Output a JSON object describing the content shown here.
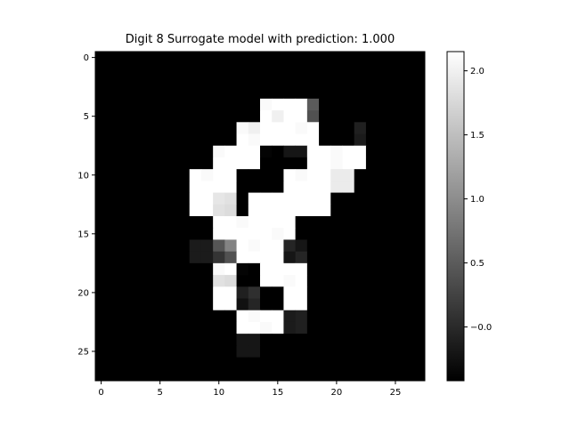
{
  "chart_data": {
    "type": "heatmap",
    "title": "Digit 8 Surrogate model with prediction: 1.000",
    "xlabel": "",
    "ylabel": "",
    "rows": 28,
    "cols": 28,
    "background_value": -0.42,
    "xticks": [
      0,
      5,
      10,
      15,
      20,
      25
    ],
    "yticks": [
      0,
      5,
      10,
      15,
      20,
      25
    ],
    "xtick_labels": [
      "0",
      "5",
      "10",
      "15",
      "20",
      "25"
    ],
    "ytick_labels": [
      "0",
      "5",
      "10",
      "15",
      "20",
      "25"
    ],
    "colormap": "gray",
    "vmin": -0.42,
    "vmax": 2.15,
    "colorbar_ticks": [
      -0.0,
      0.5,
      1.0,
      1.5,
      2.0
    ],
    "colorbar_tick_labels": [
      "−0.0",
      "0.5",
      "1.0",
      "1.5",
      "2.0"
    ],
    "nonzero_cells": [
      {
        "r": 4,
        "c": 14,
        "v": 2.1
      },
      {
        "r": 4,
        "c": 15,
        "v": 2.15
      },
      {
        "r": 4,
        "c": 16,
        "v": 2.15
      },
      {
        "r": 4,
        "c": 17,
        "v": 2.15
      },
      {
        "r": 4,
        "c": 18,
        "v": 0.5
      },
      {
        "r": 5,
        "c": 14,
        "v": 2.15
      },
      {
        "r": 5,
        "c": 15,
        "v": 2.0
      },
      {
        "r": 5,
        "c": 16,
        "v": 2.15
      },
      {
        "r": 5,
        "c": 17,
        "v": 2.15
      },
      {
        "r": 5,
        "c": 18,
        "v": 0.4
      },
      {
        "r": 6,
        "c": 12,
        "v": 2.1
      },
      {
        "r": 6,
        "c": 13,
        "v": 2.0
      },
      {
        "r": 6,
        "c": 14,
        "v": 2.15
      },
      {
        "r": 6,
        "c": 15,
        "v": 2.15
      },
      {
        "r": 6,
        "c": 16,
        "v": 2.15
      },
      {
        "r": 6,
        "c": 17,
        "v": 2.1
      },
      {
        "r": 6,
        "c": 18,
        "v": 2.15
      },
      {
        "r": 6,
        "c": 22,
        "v": -0.1
      },
      {
        "r": 7,
        "c": 12,
        "v": 2.15
      },
      {
        "r": 7,
        "c": 13,
        "v": 2.1
      },
      {
        "r": 7,
        "c": 14,
        "v": 2.15
      },
      {
        "r": 7,
        "c": 15,
        "v": 2.15
      },
      {
        "r": 7,
        "c": 16,
        "v": 2.15
      },
      {
        "r": 7,
        "c": 17,
        "v": 2.15
      },
      {
        "r": 7,
        "c": 18,
        "v": 2.15
      },
      {
        "r": 7,
        "c": 22,
        "v": -0.15
      },
      {
        "r": 8,
        "c": 10,
        "v": 2.1
      },
      {
        "r": 8,
        "c": 11,
        "v": 2.15
      },
      {
        "r": 8,
        "c": 12,
        "v": 2.15
      },
      {
        "r": 8,
        "c": 13,
        "v": 2.15
      },
      {
        "r": 8,
        "c": 14,
        "v": -0.38
      },
      {
        "r": 8,
        "c": 16,
        "v": -0.2
      },
      {
        "r": 8,
        "c": 17,
        "v": -0.2
      },
      {
        "r": 8,
        "c": 18,
        "v": 2.15
      },
      {
        "r": 8,
        "c": 19,
        "v": 2.15
      },
      {
        "r": 8,
        "c": 20,
        "v": 2.1
      },
      {
        "r": 8,
        "c": 21,
        "v": 2.15
      },
      {
        "r": 8,
        "c": 22,
        "v": 2.15
      },
      {
        "r": 9,
        "c": 10,
        "v": 2.15
      },
      {
        "r": 9,
        "c": 11,
        "v": 2.15
      },
      {
        "r": 9,
        "c": 12,
        "v": 2.15
      },
      {
        "r": 9,
        "c": 13,
        "v": 2.15
      },
      {
        "r": 9,
        "c": 18,
        "v": 2.15
      },
      {
        "r": 9,
        "c": 19,
        "v": 2.15
      },
      {
        "r": 9,
        "c": 20,
        "v": 2.1
      },
      {
        "r": 9,
        "c": 21,
        "v": 2.15
      },
      {
        "r": 9,
        "c": 22,
        "v": 2.15
      },
      {
        "r": 10,
        "c": 8,
        "v": 2.15
      },
      {
        "r": 10,
        "c": 9,
        "v": 2.1
      },
      {
        "r": 10,
        "c": 10,
        "v": 2.15
      },
      {
        "r": 10,
        "c": 11,
        "v": 2.15
      },
      {
        "r": 10,
        "c": 16,
        "v": 2.15
      },
      {
        "r": 10,
        "c": 17,
        "v": 2.1
      },
      {
        "r": 10,
        "c": 18,
        "v": 2.15
      },
      {
        "r": 10,
        "c": 19,
        "v": 2.15
      },
      {
        "r": 10,
        "c": 20,
        "v": 1.95
      },
      {
        "r": 10,
        "c": 21,
        "v": 1.95
      },
      {
        "r": 11,
        "c": 8,
        "v": 2.15
      },
      {
        "r": 11,
        "c": 9,
        "v": 2.15
      },
      {
        "r": 11,
        "c": 10,
        "v": 2.15
      },
      {
        "r": 11,
        "c": 11,
        "v": 2.15
      },
      {
        "r": 11,
        "c": 16,
        "v": 2.15
      },
      {
        "r": 11,
        "c": 17,
        "v": 2.15
      },
      {
        "r": 11,
        "c": 18,
        "v": 2.15
      },
      {
        "r": 11,
        "c": 19,
        "v": 2.15
      },
      {
        "r": 11,
        "c": 20,
        "v": 1.95
      },
      {
        "r": 11,
        "c": 21,
        "v": 1.95
      },
      {
        "r": 12,
        "c": 8,
        "v": 2.15
      },
      {
        "r": 12,
        "c": 9,
        "v": 2.15
      },
      {
        "r": 12,
        "c": 10,
        "v": 1.9
      },
      {
        "r": 12,
        "c": 11,
        "v": 1.85
      },
      {
        "r": 12,
        "c": 13,
        "v": 2.15
      },
      {
        "r": 12,
        "c": 14,
        "v": 2.15
      },
      {
        "r": 12,
        "c": 15,
        "v": 2.15
      },
      {
        "r": 12,
        "c": 16,
        "v": 2.15
      },
      {
        "r": 12,
        "c": 17,
        "v": 2.15
      },
      {
        "r": 12,
        "c": 18,
        "v": 2.15
      },
      {
        "r": 12,
        "c": 19,
        "v": 2.15
      },
      {
        "r": 13,
        "c": 8,
        "v": 2.15
      },
      {
        "r": 13,
        "c": 9,
        "v": 2.15
      },
      {
        "r": 13,
        "c": 10,
        "v": 1.85
      },
      {
        "r": 13,
        "c": 11,
        "v": 1.8
      },
      {
        "r": 13,
        "c": 13,
        "v": 2.15
      },
      {
        "r": 13,
        "c": 14,
        "v": 2.15
      },
      {
        "r": 13,
        "c": 15,
        "v": 2.15
      },
      {
        "r": 13,
        "c": 16,
        "v": 2.15
      },
      {
        "r": 13,
        "c": 17,
        "v": 2.15
      },
      {
        "r": 13,
        "c": 18,
        "v": 2.15
      },
      {
        "r": 13,
        "c": 19,
        "v": 2.15
      },
      {
        "r": 14,
        "c": 10,
        "v": 2.15
      },
      {
        "r": 14,
        "c": 11,
        "v": 2.15
      },
      {
        "r": 14,
        "c": 12,
        "v": 2.1
      },
      {
        "r": 14,
        "c": 13,
        "v": 2.15
      },
      {
        "r": 14,
        "c": 14,
        "v": 2.15
      },
      {
        "r": 14,
        "c": 15,
        "v": 2.15
      },
      {
        "r": 14,
        "c": 16,
        "v": 2.15
      },
      {
        "r": 15,
        "c": 10,
        "v": 2.15
      },
      {
        "r": 15,
        "c": 11,
        "v": 2.15
      },
      {
        "r": 15,
        "c": 12,
        "v": 2.15
      },
      {
        "r": 15,
        "c": 13,
        "v": 2.15
      },
      {
        "r": 15,
        "c": 14,
        "v": 2.15
      },
      {
        "r": 15,
        "c": 15,
        "v": 2.1
      },
      {
        "r": 15,
        "c": 16,
        "v": 2.15
      },
      {
        "r": 16,
        "c": 8,
        "v": -0.15
      },
      {
        "r": 16,
        "c": 9,
        "v": -0.15
      },
      {
        "r": 16,
        "c": 10,
        "v": 0.45
      },
      {
        "r": 16,
        "c": 11,
        "v": 0.9
      },
      {
        "r": 16,
        "c": 12,
        "v": 2.15
      },
      {
        "r": 16,
        "c": 13,
        "v": 2.1
      },
      {
        "r": 16,
        "c": 14,
        "v": 2.15
      },
      {
        "r": 16,
        "c": 15,
        "v": 2.15
      },
      {
        "r": 16,
        "c": 16,
        "v": -0.05
      },
      {
        "r": 16,
        "c": 17,
        "v": -0.2
      },
      {
        "r": 17,
        "c": 8,
        "v": -0.15
      },
      {
        "r": 17,
        "c": 9,
        "v": -0.15
      },
      {
        "r": 17,
        "c": 10,
        "v": 0.1
      },
      {
        "r": 17,
        "c": 11,
        "v": 0.4
      },
      {
        "r": 17,
        "c": 12,
        "v": 2.15
      },
      {
        "r": 17,
        "c": 13,
        "v": 2.15
      },
      {
        "r": 17,
        "c": 14,
        "v": 2.15
      },
      {
        "r": 17,
        "c": 15,
        "v": 2.15
      },
      {
        "r": 17,
        "c": 16,
        "v": -0.2
      },
      {
        "r": 17,
        "c": 17,
        "v": -0.05
      },
      {
        "r": 18,
        "c": 10,
        "v": 2.1
      },
      {
        "r": 18,
        "c": 11,
        "v": 2.15
      },
      {
        "r": 18,
        "c": 12,
        "v": -0.38
      },
      {
        "r": 18,
        "c": 14,
        "v": 2.15
      },
      {
        "r": 18,
        "c": 15,
        "v": 2.15
      },
      {
        "r": 18,
        "c": 16,
        "v": 2.15
      },
      {
        "r": 18,
        "c": 17,
        "v": 2.15
      },
      {
        "r": 19,
        "c": 10,
        "v": 1.85
      },
      {
        "r": 19,
        "c": 11,
        "v": 1.8
      },
      {
        "r": 19,
        "c": 14,
        "v": 2.15
      },
      {
        "r": 19,
        "c": 15,
        "v": 2.15
      },
      {
        "r": 19,
        "c": 16,
        "v": 2.1
      },
      {
        "r": 19,
        "c": 17,
        "v": 2.15
      },
      {
        "r": 20,
        "c": 10,
        "v": 2.15
      },
      {
        "r": 20,
        "c": 11,
        "v": 2.15
      },
      {
        "r": 20,
        "c": 12,
        "v": -0.1
      },
      {
        "r": 20,
        "c": 13,
        "v": 0.05
      },
      {
        "r": 20,
        "c": 16,
        "v": 2.15
      },
      {
        "r": 20,
        "c": 17,
        "v": 2.15
      },
      {
        "r": 21,
        "c": 10,
        "v": 2.15
      },
      {
        "r": 21,
        "c": 11,
        "v": 2.15
      },
      {
        "r": 21,
        "c": 12,
        "v": -0.25
      },
      {
        "r": 21,
        "c": 13,
        "v": -0.05
      },
      {
        "r": 21,
        "c": 16,
        "v": 2.15
      },
      {
        "r": 21,
        "c": 17,
        "v": 2.15
      },
      {
        "r": 22,
        "c": 12,
        "v": 2.15
      },
      {
        "r": 22,
        "c": 13,
        "v": 2.1
      },
      {
        "r": 22,
        "c": 14,
        "v": 2.15
      },
      {
        "r": 22,
        "c": 15,
        "v": 2.15
      },
      {
        "r": 22,
        "c": 16,
        "v": -0.15
      },
      {
        "r": 22,
        "c": 17,
        "v": -0.1
      },
      {
        "r": 23,
        "c": 12,
        "v": 2.15
      },
      {
        "r": 23,
        "c": 13,
        "v": 2.15
      },
      {
        "r": 23,
        "c": 14,
        "v": 2.1
      },
      {
        "r": 23,
        "c": 15,
        "v": 2.15
      },
      {
        "r": 23,
        "c": 16,
        "v": -0.15
      },
      {
        "r": 23,
        "c": 17,
        "v": -0.1
      },
      {
        "r": 24,
        "c": 12,
        "v": -0.2
      },
      {
        "r": 24,
        "c": 13,
        "v": -0.2
      },
      {
        "r": 25,
        "c": 12,
        "v": -0.2
      },
      {
        "r": 25,
        "c": 13,
        "v": -0.2
      }
    ]
  }
}
